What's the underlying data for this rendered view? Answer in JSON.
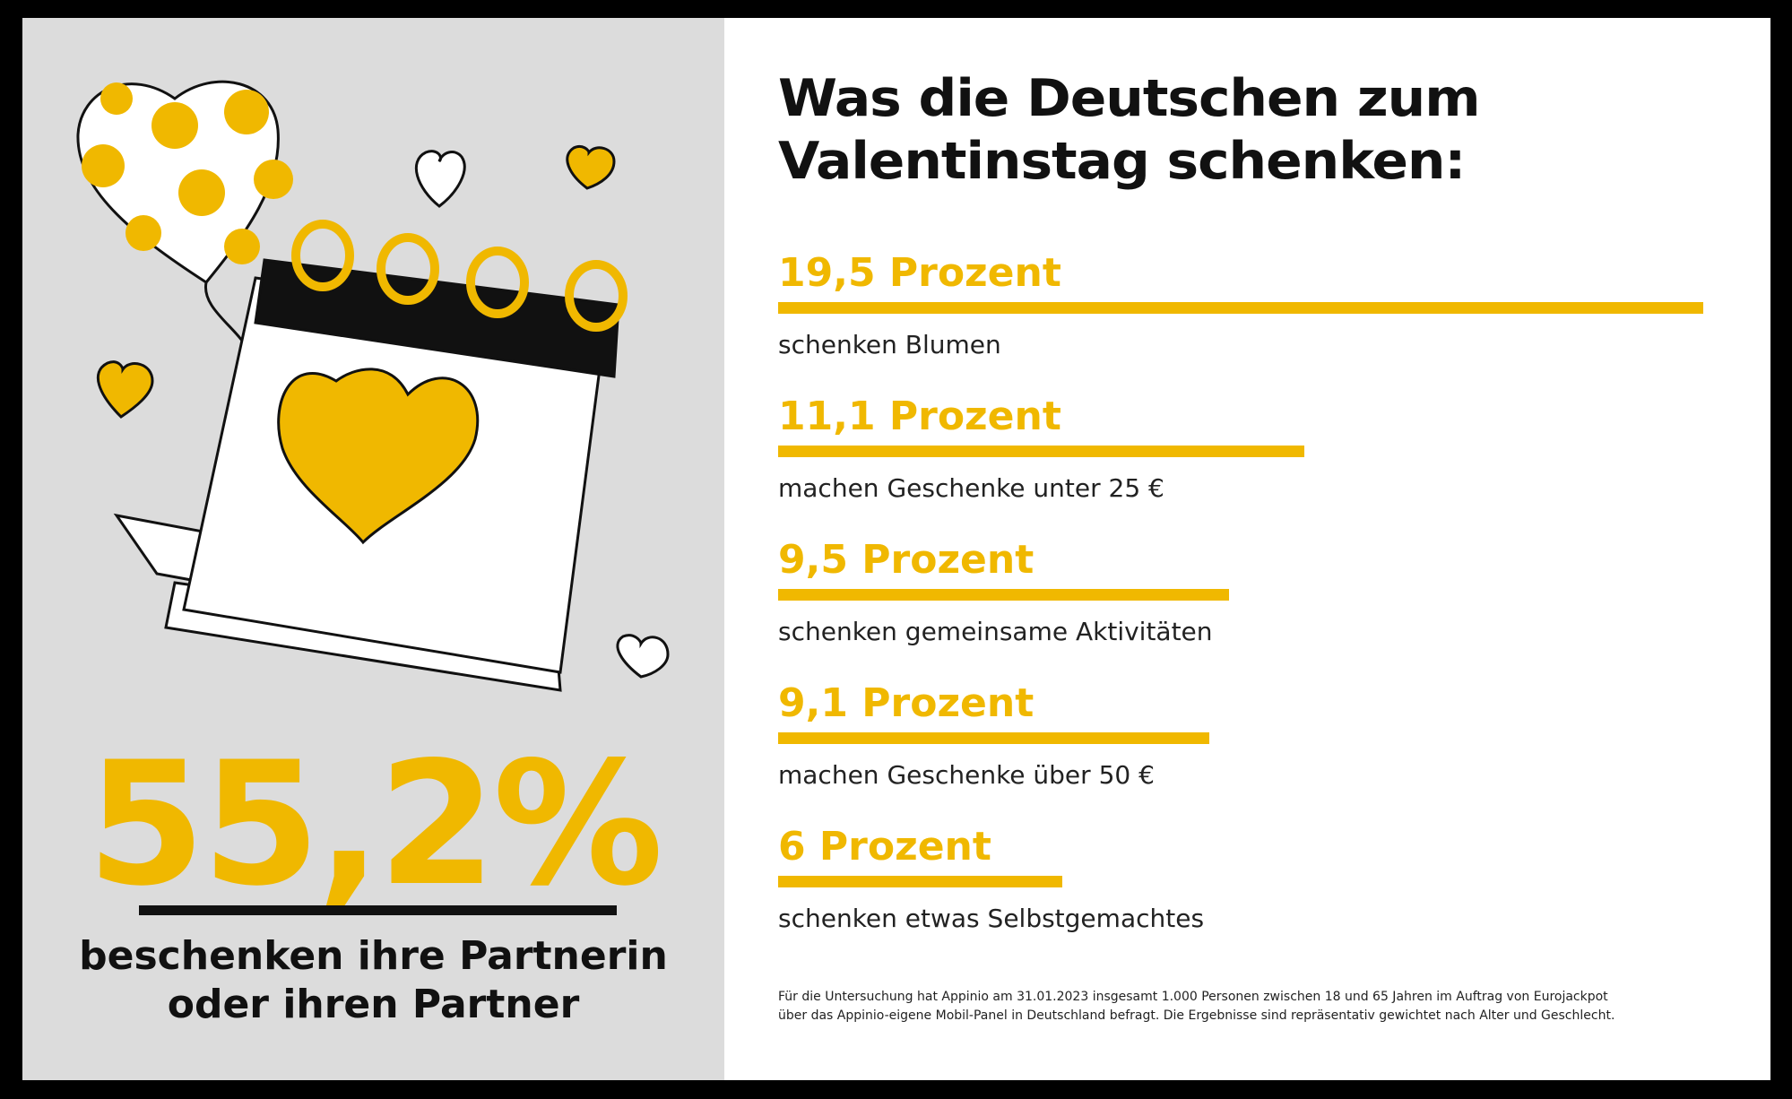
{
  "title": [
    "Was die Deutschen zum",
    "Valentinstag schenken:"
  ],
  "highlight": {
    "value": "55,2%",
    "text": [
      "beschenken ihre Partnerin",
      "oder ihren Partner"
    ]
  },
  "colors": {
    "accent": "#f0b800",
    "left_bg": "#dcdcdc",
    "text": "#111111"
  },
  "chart_data": {
    "type": "bar",
    "orientation": "horizontal",
    "unit": "Prozent",
    "categories": [
      "schenken Blumen",
      "machen Geschenke unter 25 €",
      "schenken gemeinsame Aktivitäten",
      "machen Geschenke über 50 €",
      "schenken etwas Selbstgemachtes"
    ],
    "values": [
      19.5,
      11.1,
      9.5,
      9.1,
      6
    ],
    "labels": [
      "19,5 Prozent",
      "11,1 Prozent",
      "9,5 Prozent",
      "9,1 Prozent",
      "6 Prozent"
    ]
  },
  "footnote": [
    "Für die Untersuchung hat Appinio am 31.01.2023 insgesamt 1.000 Personen zwischen 18 und 65 Jahren im Auftrag von Eurojackpot",
    "über das Appinio-eigene Mobil-Panel in Deutschland befragt. Die Ergebnisse sind repräsentativ gewichtet nach Alter und Geschlecht."
  ]
}
